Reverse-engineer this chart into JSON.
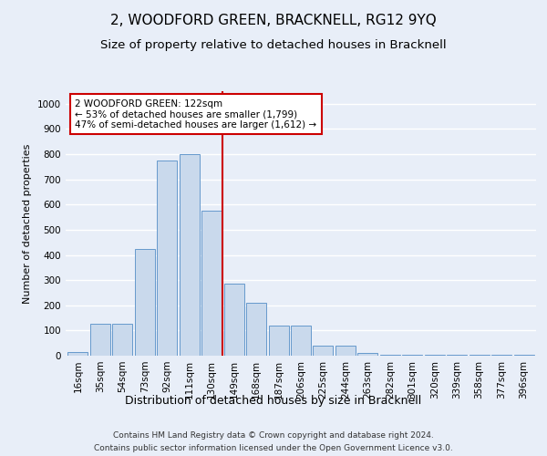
{
  "title": "2, WOODFORD GREEN, BRACKNELL, RG12 9YQ",
  "subtitle": "Size of property relative to detached houses in Bracknell",
  "xlabel": "Distribution of detached houses by size in Bracknell",
  "ylabel": "Number of detached properties",
  "categories": [
    "16sqm",
    "35sqm",
    "54sqm",
    "73sqm",
    "92sqm",
    "111sqm",
    "130sqm",
    "149sqm",
    "168sqm",
    "187sqm",
    "206sqm",
    "225sqm",
    "244sqm",
    "263sqm",
    "282sqm",
    "301sqm",
    "320sqm",
    "339sqm",
    "358sqm",
    "377sqm",
    "396sqm"
  ],
  "values": [
    15,
    125,
    125,
    425,
    775,
    800,
    575,
    285,
    210,
    120,
    120,
    40,
    40,
    12,
    5,
    5,
    5,
    2,
    2,
    2,
    5
  ],
  "bar_color": "#c9d9ec",
  "bar_edge_color": "#6699cc",
  "background_color": "#e8eef8",
  "grid_color": "#ffffff",
  "vline_color": "#cc0000",
  "vline_pos": 6.5,
  "annotation_text": "2 WOODFORD GREEN: 122sqm\n← 53% of detached houses are smaller (1,799)\n47% of semi-detached houses are larger (1,612) →",
  "annotation_box_color": "#ffffff",
  "annotation_box_edge": "#cc0000",
  "ylim": [
    0,
    1050
  ],
  "yticks": [
    0,
    100,
    200,
    300,
    400,
    500,
    600,
    700,
    800,
    900,
    1000
  ],
  "footnote_line1": "Contains HM Land Registry data © Crown copyright and database right 2024.",
  "footnote_line2": "Contains public sector information licensed under the Open Government Licence v3.0.",
  "title_fontsize": 11,
  "subtitle_fontsize": 9.5,
  "xlabel_fontsize": 9,
  "ylabel_fontsize": 8,
  "tick_fontsize": 7.5,
  "annotation_fontsize": 7.5,
  "footnote_fontsize": 6.5
}
